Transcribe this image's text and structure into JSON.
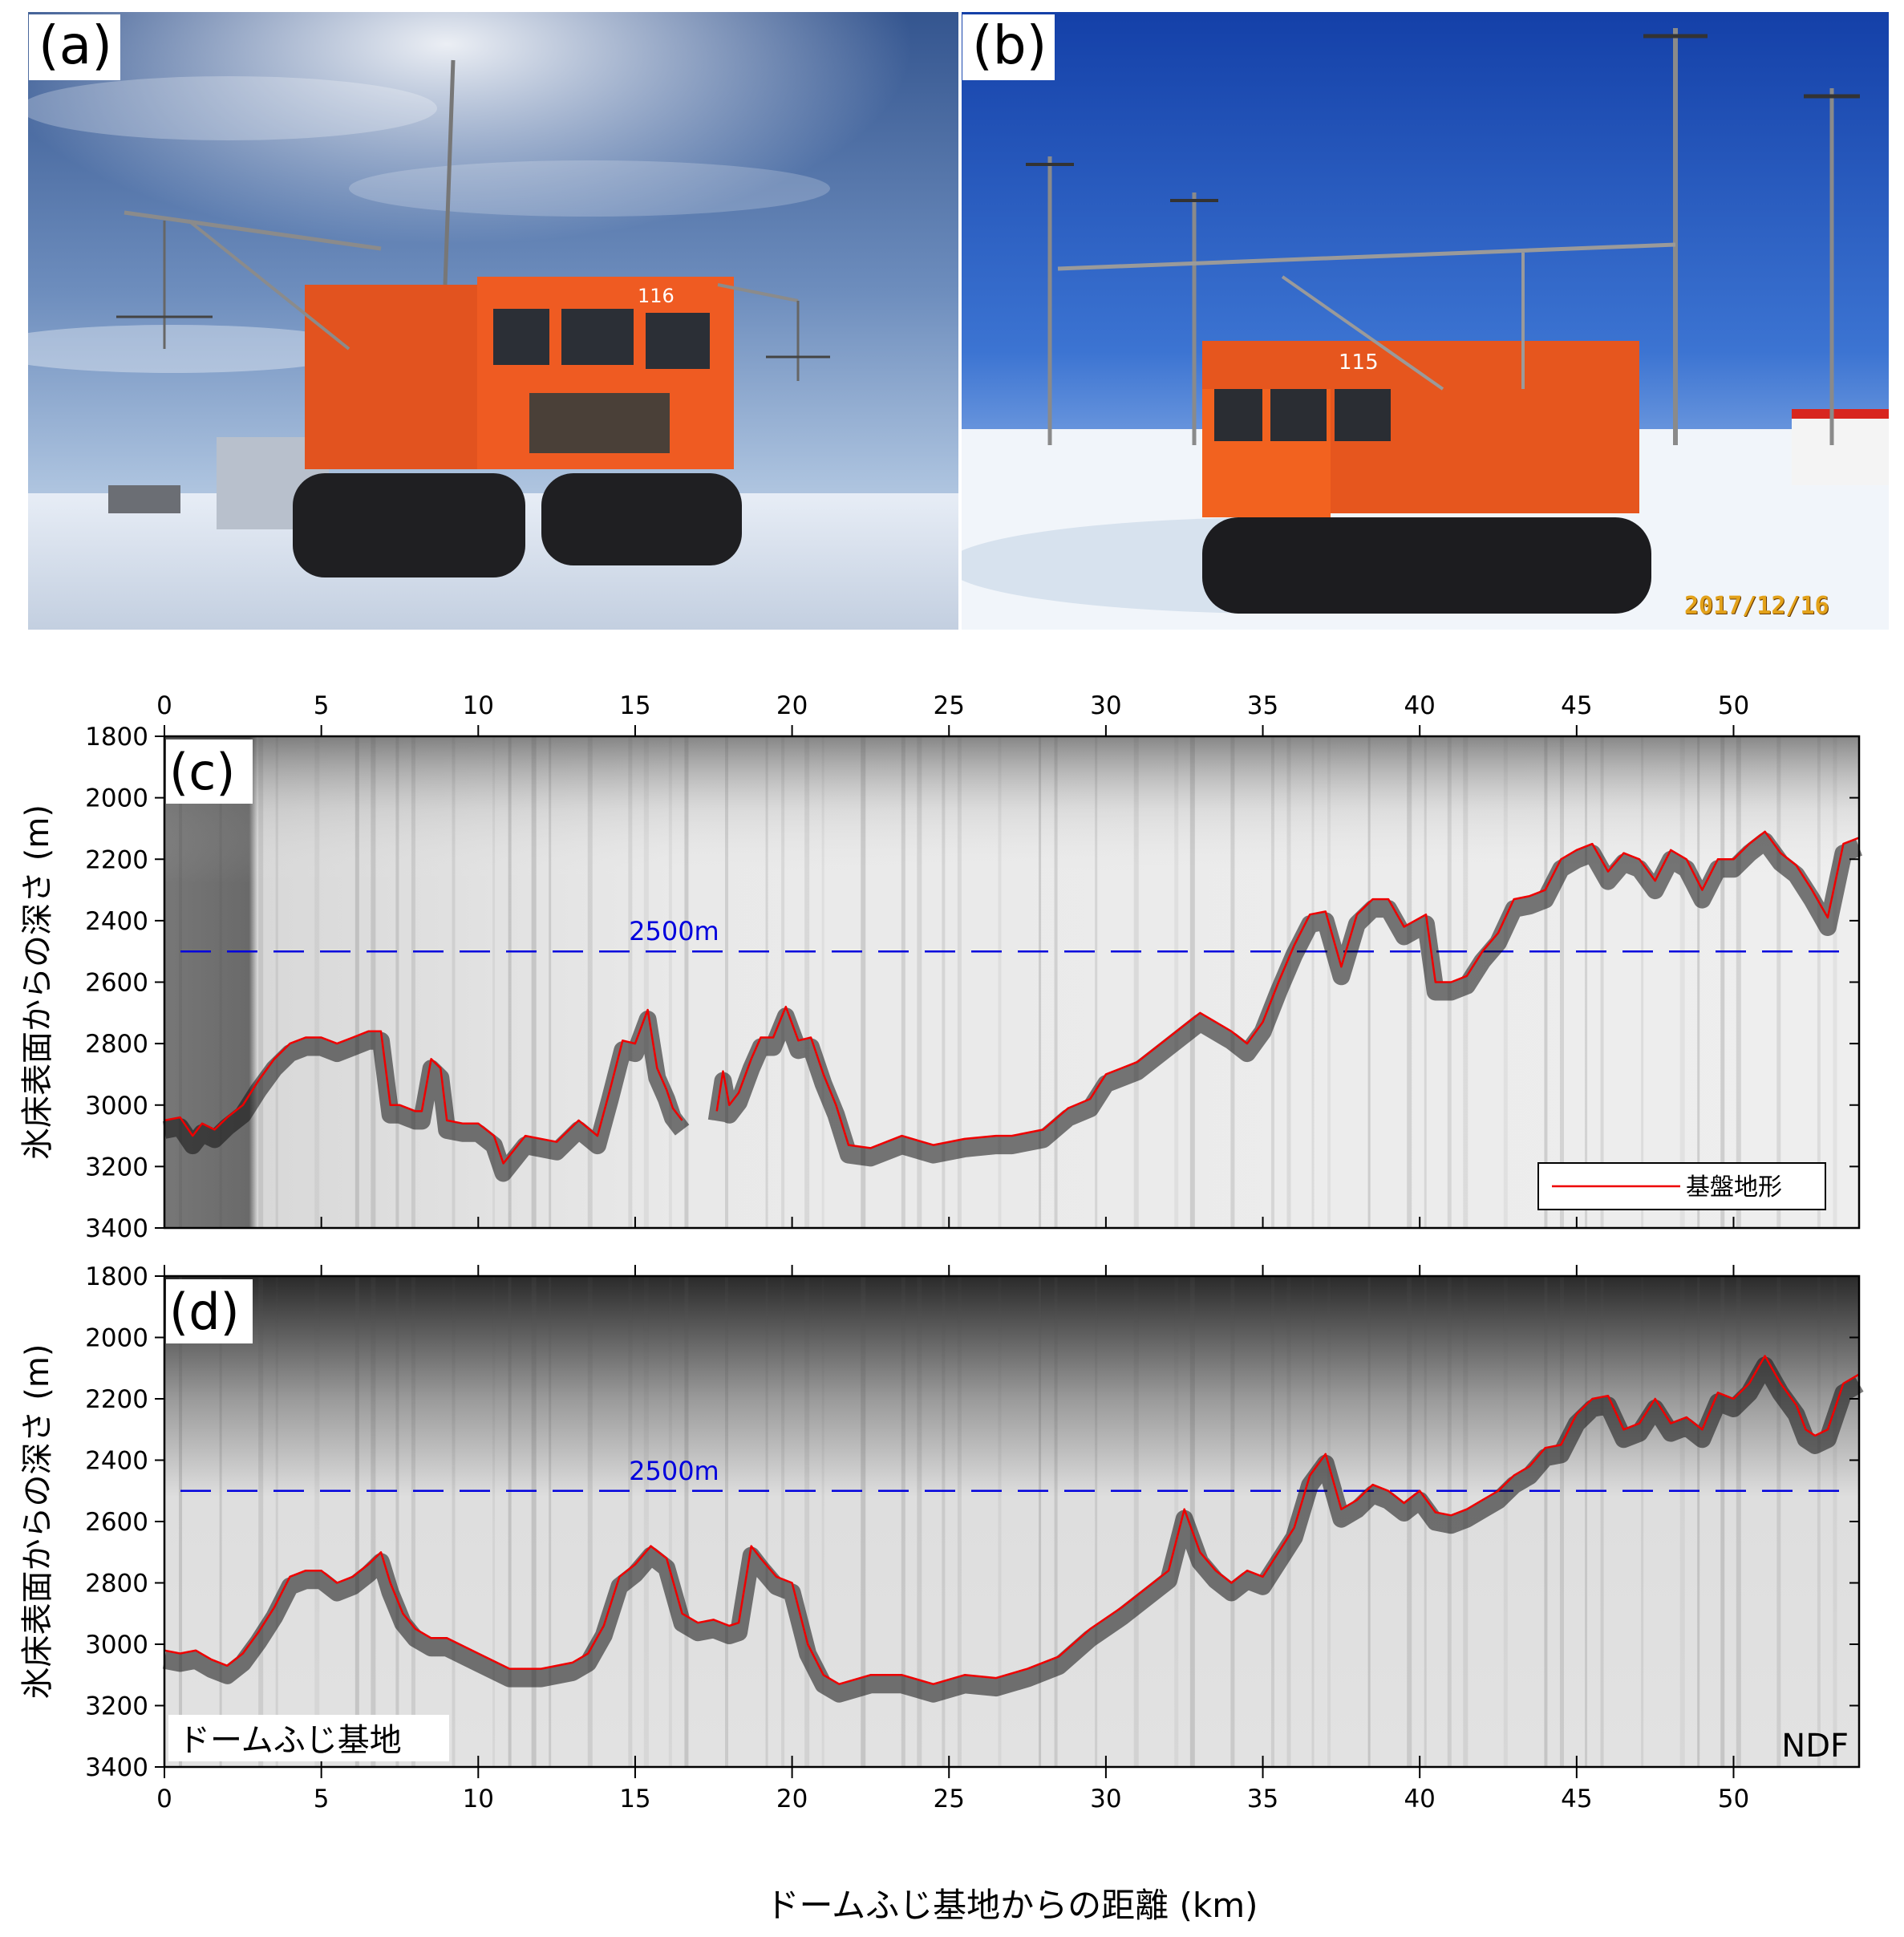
{
  "photos": [
    {
      "label": "(a)",
      "vehicle_number": "116"
    },
    {
      "label": "(b)",
      "vehicle_number": "115",
      "date_stamp": "2017/12/16"
    }
  ],
  "colors": {
    "bed_line": "#ee0000",
    "ref_line": "#0000dd"
  },
  "chart_data": [
    {
      "type": "line",
      "label": "(c)",
      "xlabel": "",
      "ylabel": "氷床表面からの深さ (m)",
      "xlim": [
        0,
        54
      ],
      "ylim": [
        3400,
        1800
      ],
      "y_reversed": true,
      "xticks": [
        0,
        5,
        10,
        15,
        20,
        25,
        30,
        35,
        40,
        45,
        50
      ],
      "yticks": [
        1800,
        2000,
        2200,
        2400,
        2600,
        2800,
        3000,
        3200,
        3400
      ],
      "xtick_position": "top",
      "background": "radar-echogram-grayscale",
      "reference_line": {
        "y": 2500,
        "label": "2500m",
        "style": "dashed"
      },
      "legend": {
        "entries": [
          "基盤地形"
        ],
        "placement": "bottom-right"
      },
      "series": [
        {
          "name": "基盤地形",
          "segments": [
            {
              "x": [
                0,
                0.5,
                0.9,
                1.2,
                1.6,
                2.0,
                2.5,
                3.0,
                3.5,
                4.0,
                4.5,
                5.0,
                5.5,
                6.0,
                6.5,
                6.9,
                7.2,
                7.5,
                8.0,
                8.2,
                8.5,
                8.8,
                9.0,
                9.5,
                10.0,
                10.5,
                10.8,
                11.5,
                12.5,
                13.2,
                13.8,
                14.2,
                14.6,
                15.0,
                15.4,
                15.7,
                16.0,
                16.2,
                16.5
              ],
              "y": [
                3050,
                3040,
                3100,
                3060,
                3080,
                3040,
                3000,
                2920,
                2850,
                2800,
                2780,
                2780,
                2800,
                2780,
                2760,
                2760,
                3000,
                3000,
                3020,
                3020,
                2850,
                2880,
                3050,
                3060,
                3060,
                3100,
                3190,
                3100,
                3120,
                3050,
                3100,
                2950,
                2790,
                2800,
                2690,
                2880,
                2950,
                3010,
                3050
              ]
            },
            {
              "x": [
                17.6,
                17.8,
                18.0,
                18.3,
                18.7,
                19.0,
                19.4,
                19.8,
                20.2,
                20.6,
                21.0,
                21.4,
                21.8,
                22.5,
                23.5,
                24.5,
                25.5,
                26.5,
                27.0,
                28.0,
                28.8,
                29.5,
                30.0,
                31.0,
                32.0,
                33.0,
                34.0,
                34.5,
                35.0,
                35.5,
                36.0,
                36.5,
                37.0,
                37.5,
                38.0,
                38.5,
                39.0,
                39.5,
                40.2,
                40.5,
                41.0,
                41.5,
                42.0,
                42.5,
                43.0,
                43.5,
                44.0,
                44.5,
                45.0,
                45.5,
                46.0,
                46.5,
                47.0,
                47.5,
                48.0,
                48.5,
                49.0,
                49.5,
                50.0,
                50.5,
                51.0,
                51.5,
                52.0,
                52.5,
                53.0,
                53.5,
                54.0
              ],
              "y": [
                3020,
                2890,
                3000,
                2960,
                2850,
                2780,
                2780,
                2680,
                2790,
                2780,
                2900,
                3000,
                3130,
                3140,
                3100,
                3130,
                3110,
                3100,
                3100,
                3080,
                3010,
                2980,
                2900,
                2860,
                2780,
                2700,
                2760,
                2800,
                2730,
                2600,
                2480,
                2380,
                2370,
                2550,
                2380,
                2330,
                2330,
                2420,
                2380,
                2600,
                2600,
                2580,
                2500,
                2440,
                2330,
                2320,
                2300,
                2200,
                2170,
                2150,
                2240,
                2180,
                2200,
                2270,
                2170,
                2200,
                2300,
                2200,
                2200,
                2150,
                2110,
                2180,
                2220,
                2300,
                2390,
                2150,
                2130
              ]
            }
          ]
        }
      ]
    },
    {
      "type": "line",
      "label": "(d)",
      "xlabel": "ドームふじ基地からの距離 (km)",
      "ylabel": "氷床表面からの深さ (m)",
      "xlim": [
        0,
        54
      ],
      "ylim": [
        3400,
        1800
      ],
      "y_reversed": true,
      "xticks": [
        0,
        5,
        10,
        15,
        20,
        25,
        30,
        35,
        40,
        45,
        50
      ],
      "yticks": [
        1800,
        2000,
        2200,
        2400,
        2600,
        2800,
        3000,
        3200,
        3400
      ],
      "xtick_position": "bottom",
      "background": "radar-echogram-grayscale",
      "reference_line": {
        "y": 2500,
        "label": "2500m",
        "style": "dashed"
      },
      "annotations": [
        {
          "text": "ドームふじ基地",
          "placement": "bottom-left"
        },
        {
          "text": "NDF",
          "placement": "bottom-right"
        }
      ],
      "series": [
        {
          "name": "",
          "segments": [
            {
              "x": [
                0,
                0.5,
                1.0,
                1.5,
                2.0,
                2.5,
                3.0,
                3.5,
                4.0,
                4.5,
                5.0,
                5.5,
                6.0,
                6.5,
                6.9,
                7.2,
                7.6,
                8.0,
                8.5,
                9.0,
                10.0,
                11.0,
                12.0,
                13.0,
                13.5,
                14.0,
                14.5,
                15.0,
                15.5,
                16.0,
                16.5,
                17.0,
                17.5,
                18.0,
                18.3,
                18.7,
                19.0,
                19.5,
                20.0,
                20.5,
                21.0,
                21.5,
                22.5,
                23.5,
                24.5,
                25.5,
                26.5,
                27.5,
                28.5,
                29.5,
                30.5,
                31.5,
                32.0,
                32.5,
                33.0,
                33.5,
                34.0,
                34.5,
                35.0,
                35.5,
                36.0,
                36.5,
                37.0,
                37.5,
                38.0,
                38.5,
                39.0,
                39.5,
                40.0,
                40.5,
                41.0,
                41.5,
                42.0,
                42.5,
                43.0,
                43.5,
                44.0,
                44.5,
                45.0,
                45.5,
                46.0,
                46.5,
                47.0,
                47.5,
                48.0,
                48.5,
                49.0,
                49.5,
                50.0,
                50.5,
                51.0,
                51.5,
                52.0,
                52.3,
                52.6,
                53.0,
                53.5,
                54.0
              ],
              "y": [
                3020,
                3030,
                3020,
                3050,
                3070,
                3030,
                2960,
                2880,
                2780,
                2760,
                2760,
                2800,
                2780,
                2740,
                2700,
                2800,
                2900,
                2950,
                2980,
                2980,
                3030,
                3080,
                3080,
                3060,
                3030,
                2940,
                2780,
                2740,
                2680,
                2720,
                2900,
                2930,
                2920,
                2940,
                2930,
                2680,
                2720,
                2780,
                2800,
                3000,
                3100,
                3130,
                3100,
                3100,
                3130,
                3100,
                3110,
                3080,
                3040,
                2950,
                2880,
                2800,
                2760,
                2560,
                2700,
                2760,
                2800,
                2760,
                2780,
                2700,
                2620,
                2450,
                2380,
                2560,
                2530,
                2480,
                2500,
                2540,
                2500,
                2570,
                2580,
                2560,
                2530,
                2500,
                2450,
                2420,
                2360,
                2350,
                2250,
                2200,
                2190,
                2300,
                2280,
                2200,
                2280,
                2260,
                2300,
                2180,
                2200,
                2150,
                2060,
                2150,
                2220,
                2300,
                2320,
                2300,
                2150,
                2120
              ]
            }
          ]
        }
      ]
    }
  ]
}
